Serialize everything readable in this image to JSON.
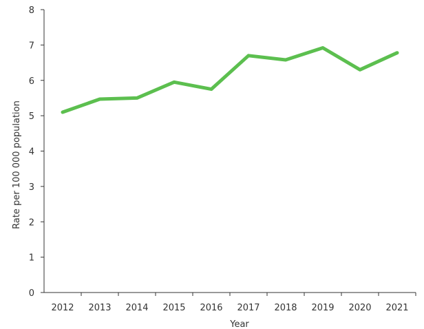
{
  "chart_data": {
    "type": "line",
    "title": "",
    "xlabel": "Year",
    "ylabel": "Rate per 100 000 population",
    "x": [
      "2012",
      "2013",
      "2014",
      "2015",
      "2016",
      "2017",
      "2018",
      "2019",
      "2020",
      "2021"
    ],
    "series": [
      {
        "values": [
          5.1,
          5.47,
          5.5,
          5.95,
          5.75,
          6.7,
          6.58,
          6.92,
          6.3,
          6.78
        ],
        "color": "#5cbf4f"
      }
    ],
    "ylim": [
      0,
      8
    ],
    "yticks": [
      "0",
      "1",
      "2",
      "3",
      "4",
      "5",
      "6",
      "7",
      "8"
    ],
    "grid": false,
    "legend": "none",
    "axis_color": "#333333"
  }
}
